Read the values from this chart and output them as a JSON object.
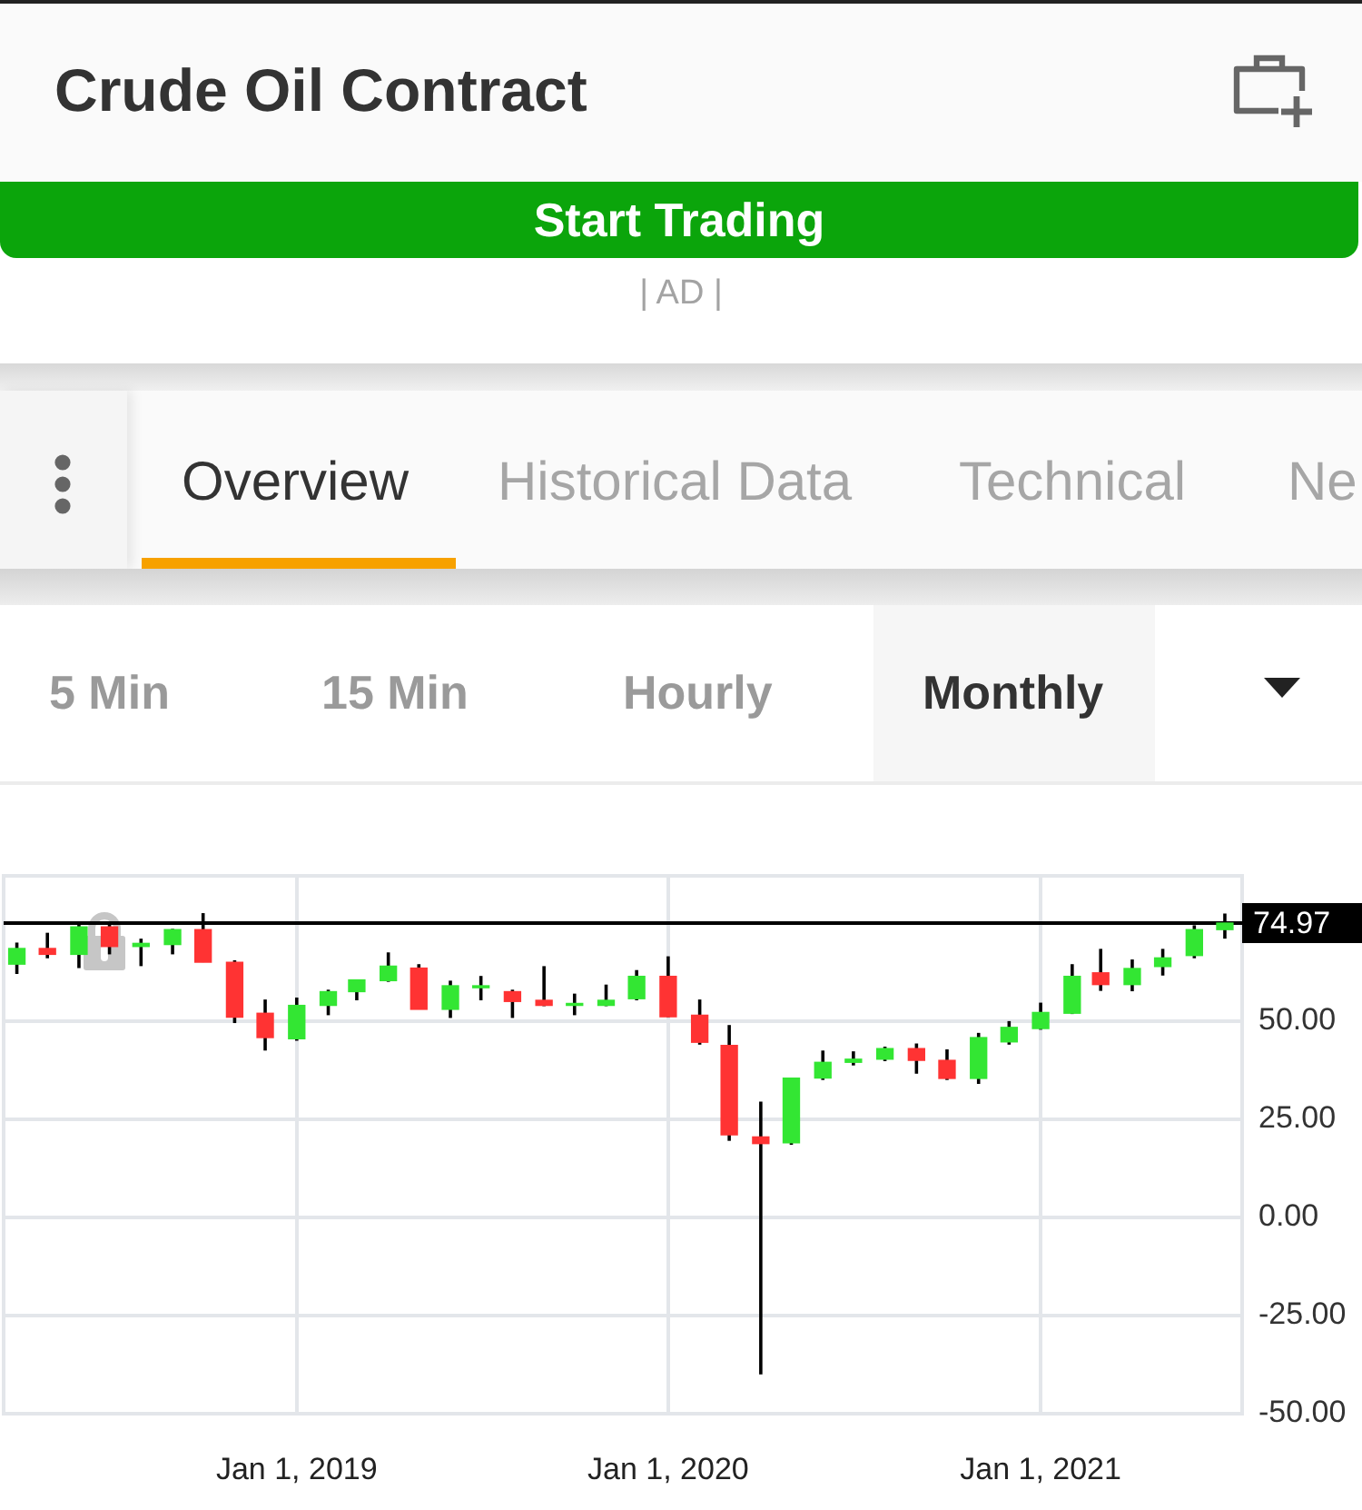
{
  "chart_data": {
    "type": "candlestick",
    "title": "Crude Oil Contract",
    "annotations": [
      "Start Trading",
      "| AD |",
      "Overview",
      "Historical Data",
      "Technical",
      "Ne",
      "5 Min",
      "15 Min",
      "Hourly",
      "Monthly"
    ],
    "x": [
      "2018-04",
      "2018-05",
      "2018-06",
      "2018-07",
      "2018-08",
      "2018-09",
      "2018-10",
      "2018-11",
      "2018-12",
      "2019-01",
      "2019-02",
      "2019-03",
      "2019-04",
      "2019-05",
      "2019-06",
      "2019-07",
      "2019-08",
      "2019-09",
      "2019-10",
      "2019-11",
      "2019-12",
      "2020-01",
      "2020-02",
      "2020-03",
      "2020-04",
      "2020-05",
      "2020-06",
      "2020-07",
      "2020-08",
      "2020-09",
      "2020-10",
      "2020-11",
      "2020-12",
      "2021-01",
      "2021-02",
      "2021-03",
      "2021-04",
      "2021-05",
      "2021-06",
      "2021-07"
    ],
    "ohlc": [
      [
        64.5,
        70,
        62,
        68.5
      ],
      [
        68.5,
        72.5,
        66,
        67
      ],
      [
        67,
        74.5,
        63.5,
        74
      ],
      [
        74,
        75,
        67,
        69
      ],
      [
        69,
        71,
        64,
        69.8
      ],
      [
        69.5,
        73.5,
        67,
        73.3
      ],
      [
        73.3,
        77.5,
        65,
        65
      ],
      [
        65,
        65.5,
        49.5,
        51
      ],
      [
        52,
        55.5,
        42.5,
        45.8
      ],
      [
        45.5,
        56,
        45,
        54
      ],
      [
        54,
        58,
        51.5,
        57.5
      ],
      [
        57.5,
        60.5,
        55.3,
        60.5
      ],
      [
        60.3,
        67.5,
        60,
        64
      ],
      [
        63.5,
        64.5,
        53,
        53
      ],
      [
        53,
        60.3,
        50.8,
        59
      ],
      [
        58.5,
        61.5,
        55.3,
        59
      ],
      [
        57.5,
        58,
        50.8,
        55
      ],
      [
        55.3,
        64,
        53.8,
        54
      ],
      [
        54,
        57,
        51.5,
        54.5
      ],
      [
        54,
        59.3,
        53.8,
        55.3
      ],
      [
        55.7,
        63,
        55.3,
        61.4
      ],
      [
        61.4,
        66.5,
        51,
        51.1
      ],
      [
        51.5,
        55.5,
        44,
        44.6
      ],
      [
        43.8,
        49,
        19.5,
        21
      ],
      [
        20.5,
        29.5,
        -40,
        18.8
      ],
      [
        19,
        35.5,
        18.5,
        35.5
      ],
      [
        35.5,
        42.5,
        35,
        39.5
      ],
      [
        39.5,
        42.3,
        38.7,
        40.3
      ],
      [
        40.3,
        43.5,
        39.8,
        43
      ],
      [
        43,
        44.3,
        36.6,
        40
      ],
      [
        40,
        42.8,
        35,
        35.4
      ],
      [
        35.4,
        47,
        34,
        45.8
      ],
      [
        44.7,
        50,
        44,
        48.4
      ],
      [
        48.1,
        54.7,
        47.8,
        52.2
      ],
      [
        52,
        64.5,
        51.8,
        61.4
      ],
      [
        62.3,
        68.4,
        57.7,
        59.3
      ],
      [
        59.3,
        65.7,
        57.6,
        63.4
      ],
      [
        63.9,
        68.4,
        61.6,
        66.1
      ],
      [
        66.7,
        74.4,
        66,
        73.3
      ],
      [
        73.3,
        77.4,
        71,
        74.97
      ]
    ],
    "colors": [
      "#33e633",
      "#ff3333",
      "#33e633",
      "#ff3333",
      "#33e633",
      "#33e633",
      "#ff3333",
      "#ff3333",
      "#ff3333",
      "#33e633",
      "#33e633",
      "#33e633",
      "#33e633",
      "#ff3333",
      "#33e633",
      "#33e633",
      "#ff3333",
      "#ff3333",
      "#33e633",
      "#33e633",
      "#33e633",
      "#ff3333",
      "#ff3333",
      "#ff3333",
      "#ff3333",
      "#33e633",
      "#33e633",
      "#33e633",
      "#33e633",
      "#ff3333",
      "#ff3333",
      "#33e633",
      "#33e633",
      "#33e633",
      "#33e633",
      "#ff3333",
      "#33e633",
      "#33e633",
      "#33e633",
      "#33e633"
    ],
    "xlim": [
      "2018-03-19",
      "2021-07-18"
    ],
    "xticks": [
      {
        "value": "2019-01-01",
        "label": "Jan 1, 2019"
      },
      {
        "value": "2020-01-01",
        "label": "Jan 1, 2020"
      },
      {
        "value": "2021-01-01",
        "label": "Jan 1, 2021"
      }
    ],
    "ylim": [
      -50,
      87
    ],
    "yticks": [
      {
        "value": -50,
        "label": "-50.00"
      },
      {
        "value": -25,
        "label": "-25.00"
      },
      {
        "value": 0,
        "label": "0.00"
      },
      {
        "value": 25,
        "label": "25.00"
      },
      {
        "value": 50,
        "label": "50.00"
      }
    ],
    "ref_lines": [
      {
        "axis": "y",
        "value": 74.97,
        "label": "74.97",
        "color": "#000000"
      }
    ],
    "grid": true
  }
}
